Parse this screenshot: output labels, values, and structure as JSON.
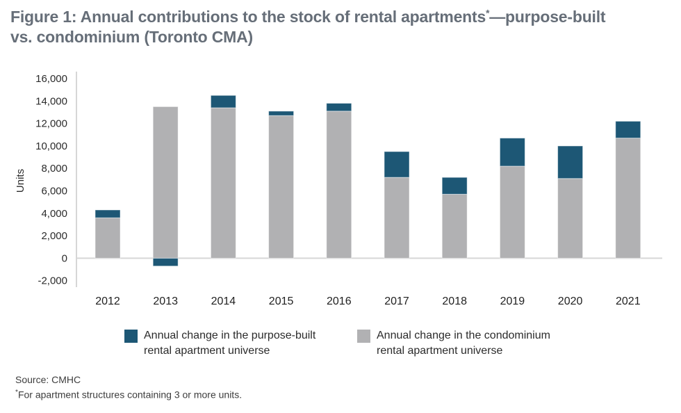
{
  "title": {
    "before_sup": "Figure 1: Annual contributions to the stock of rental apartments",
    "sup": "*",
    "after_sup": "—purpose-built",
    "line2": "vs. condominium (Toronto CMA)"
  },
  "chart_data": {
    "type": "bar",
    "stacked": true,
    "title": "Annual contributions to the stock of rental apartments — purpose-built vs. condominium (Toronto CMA)",
    "categories": [
      "2012",
      "2013",
      "2014",
      "2015",
      "2016",
      "2017",
      "2018",
      "2019",
      "2020",
      "2021"
    ],
    "series": [
      {
        "name": "Annual change in the purpose-built rental apartment universe",
        "color": "#1d5775",
        "values": [
          700,
          -700,
          1100,
          400,
          700,
          2300,
          1500,
          2500,
          2900,
          1500
        ]
      },
      {
        "name": "Annual change in the condominium rental apartment universe",
        "color": "#b1b1b3",
        "values": [
          3600,
          13500,
          13400,
          12700,
          13100,
          7200,
          5700,
          8200,
          7100,
          10700
        ]
      }
    ],
    "stack_order_bottom_first": [
      1,
      0
    ],
    "xlabel": "",
    "ylabel": "Units",
    "ylim": [
      -2000,
      16000
    ],
    "ytick_step": 2000,
    "grid": false,
    "legend_position": "bottom"
  },
  "legend": {
    "items": [
      {
        "line1": "Annual change in the purpose-built",
        "line2": "rental apartment universe",
        "color": "#1d5775"
      },
      {
        "line1": "Annual change in the condominium",
        "line2": "rental apartment universe",
        "color": "#b1b1b3"
      }
    ]
  },
  "footer": {
    "source": "Source: CMHC",
    "footnote_marker": "*",
    "footnote": "For apartment structures containing 3 or more units."
  },
  "colors": {
    "purpose_built": "#1d5775",
    "condominium": "#b1b1b3",
    "axis_line": "#d6d6d6",
    "title_text": "#666e78",
    "tick_text": "#2b2b2b"
  }
}
